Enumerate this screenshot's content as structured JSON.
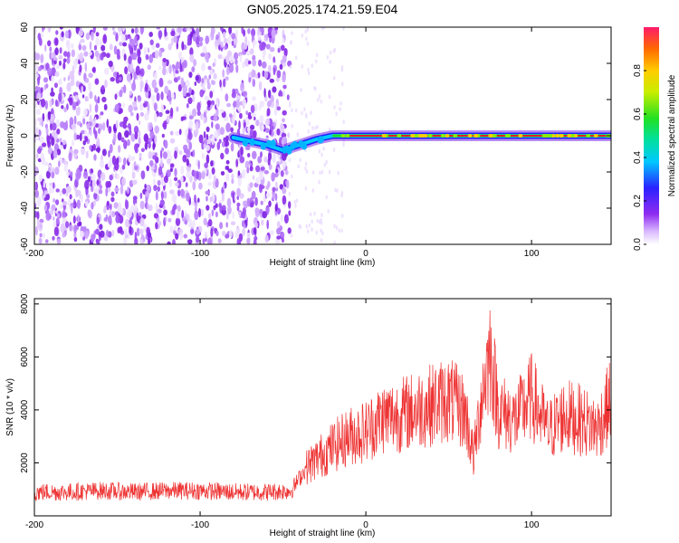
{
  "title": "GN05.2025.174.21.59.E04",
  "colors": {
    "snr_line": "#ee3333",
    "spectrum_track": "#dd2222",
    "noise_purple": "#8833ee"
  },
  "chart_data": [
    {
      "type": "heatmap",
      "xlabel": "Height of straight line (km)",
      "ylabel": "Frequency (Hz)",
      "xlim": [
        -200,
        148
      ],
      "ylim": [
        -60,
        60
      ],
      "x_ticks": [
        "-200",
        "-100",
        "0",
        "100"
      ],
      "y_ticks": [
        "-60",
        "-40",
        "-20",
        "0",
        "20",
        "40",
        "60"
      ],
      "x_tick_values": [
        -200,
        -100,
        0,
        100
      ],
      "y_tick_values": [
        -60,
        -40,
        -20,
        0,
        20,
        40,
        60
      ],
      "noise_region_x": [
        -200,
        -46
      ],
      "ridge": [
        {
          "x": -80,
          "y": -1
        },
        {
          "x": -70,
          "y": -3
        },
        {
          "x": -60,
          "y": -5
        },
        {
          "x": -50,
          "y": -8
        },
        {
          "x": -40,
          "y": -5
        },
        {
          "x": -30,
          "y": -2
        },
        {
          "x": -20,
          "y": 0
        },
        {
          "x": 0,
          "y": 0
        },
        {
          "x": 50,
          "y": 0
        },
        {
          "x": 100,
          "y": 0
        },
        {
          "x": 148,
          "y": 0
        }
      ],
      "colorbar": {
        "label": "Normalized spectral amplitude",
        "range": [
          0.0,
          1.0
        ],
        "ticks": [
          "0.0",
          "0.2",
          "0.4",
          "0.6",
          "0.8"
        ],
        "tick_values": [
          0.0,
          0.2,
          0.4,
          0.6,
          0.8
        ]
      },
      "grid": false,
      "legend": "none"
    },
    {
      "type": "line",
      "xlabel": "Height of straight line (km)",
      "ylabel": "SNR (10 * v/v)",
      "xlim": [
        -200,
        148
      ],
      "ylim": [
        0,
        8200
      ],
      "x_ticks": [
        "-200",
        "-100",
        "0",
        "100"
      ],
      "y_ticks": [
        "2000",
        "4000",
        "6000",
        "8000"
      ],
      "x_tick_values": [
        -200,
        -100,
        0,
        100
      ],
      "y_tick_values": [
        2000,
        4000,
        6000,
        8000
      ],
      "series": [
        {
          "x": [
            -200,
            -180,
            -160,
            -140,
            -120,
            -100,
            -80,
            -60,
            -45,
            -35,
            -20,
            -10,
            0,
            10,
            20,
            30,
            40,
            50,
            60,
            65,
            70,
            75,
            80,
            90,
            100,
            110,
            120,
            130,
            140,
            148
          ],
          "values": [
            900,
            900,
            950,
            900,
            950,
            950,
            900,
            900,
            950,
            1900,
            2600,
            3000,
            3200,
            3700,
            3800,
            4000,
            4200,
            4400,
            3900,
            2200,
            4600,
            6200,
            4000,
            3600,
            4500,
            3200,
            3800,
            3600,
            3300,
            4400
          ]
        }
      ],
      "grid": false,
      "legend": "none"
    }
  ]
}
